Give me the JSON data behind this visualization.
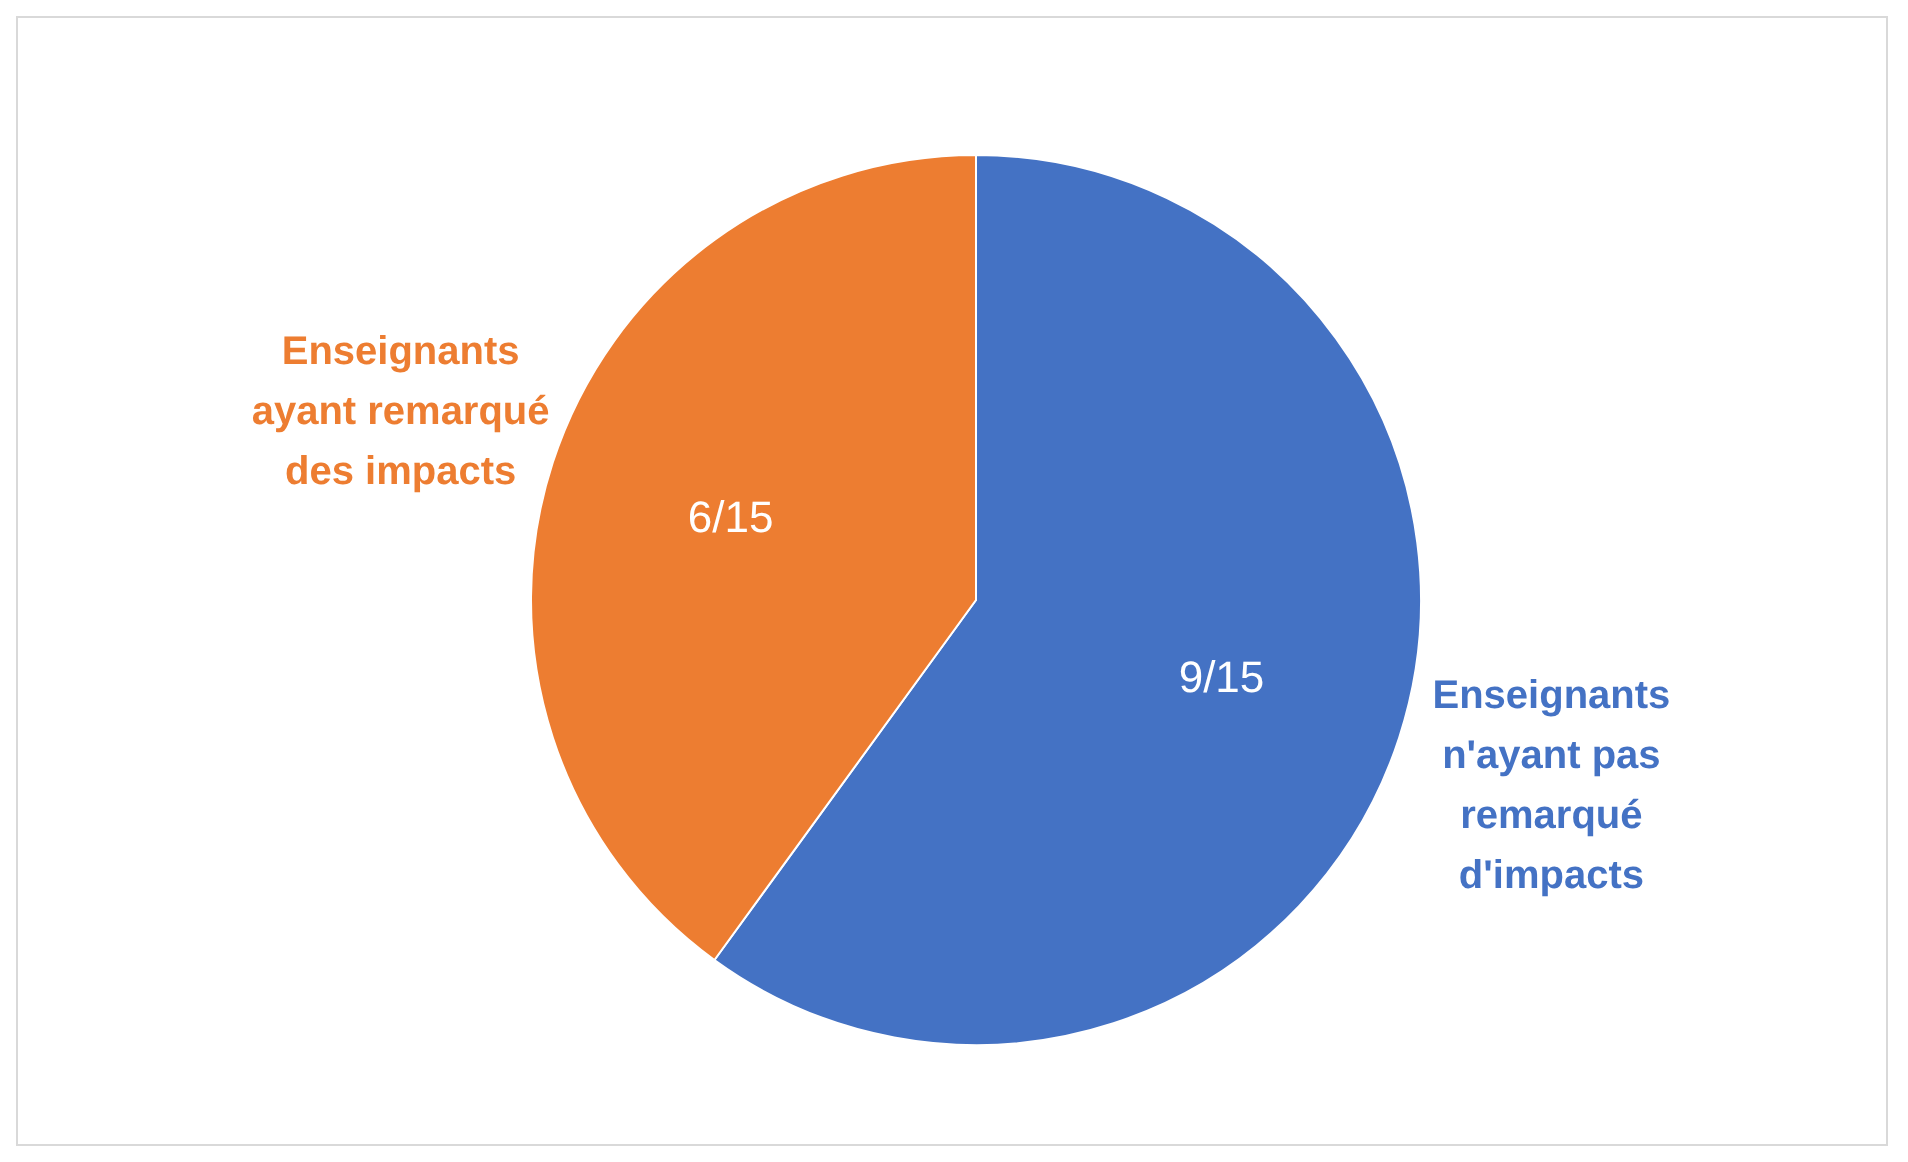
{
  "chart_data": {
    "type": "pie",
    "categories": [
      "Enseignants n'ayant pas remarqué d'impacts",
      "Enseignants ayant remarqué des impacts"
    ],
    "values": [
      9,
      6
    ],
    "value_labels": [
      "9/15",
      "6/15"
    ],
    "colors": [
      "#4472c4",
      "#ed7d31"
    ],
    "legend": false
  }
}
